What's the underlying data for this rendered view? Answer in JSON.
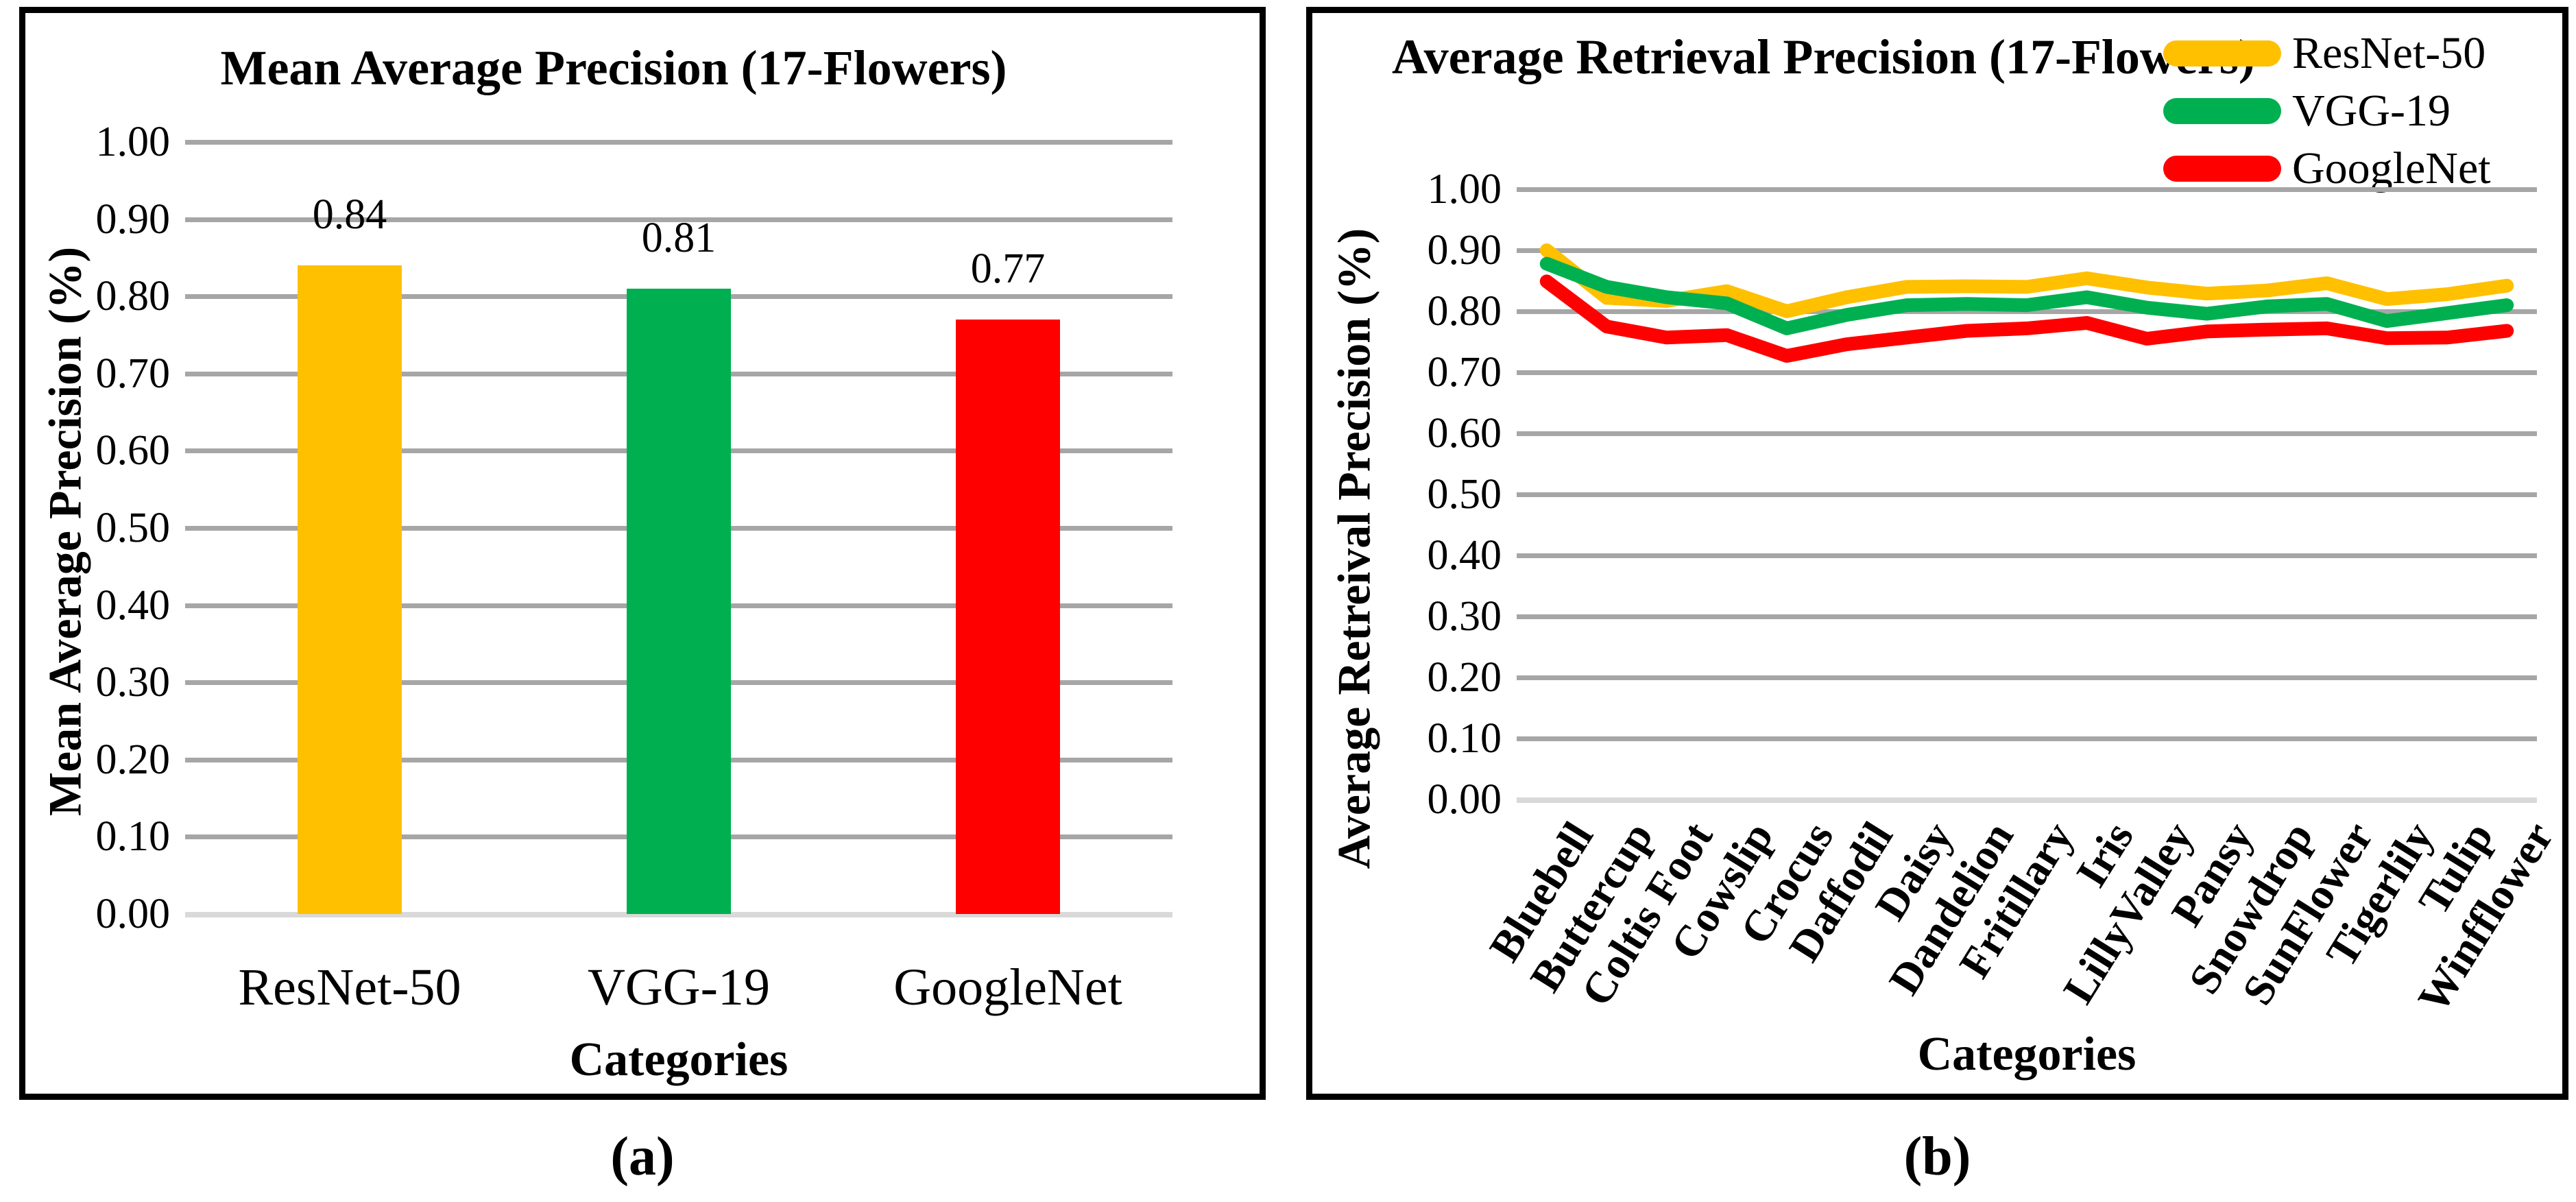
{
  "figure": {
    "captions": {
      "a": "(a)",
      "b": "(b)"
    }
  },
  "colors": {
    "background": "#FFFFFF",
    "panel_border": "#000000",
    "gridline": "#A6A6A6",
    "baseline": "#D9D9D9",
    "text": "#000000"
  },
  "chart_data": [
    {
      "type": "bar",
      "panel": "a",
      "title": "Mean Average Precision (17-Flowers)",
      "xlabel": "Categories",
      "ylabel": "Mean Average Precision (%)",
      "categories": [
        "ResNet-50",
        "VGG-19",
        "GoogleNet"
      ],
      "values": [
        0.84,
        0.81,
        0.77
      ],
      "value_labels": [
        "0.84",
        "0.81",
        "0.77"
      ],
      "bar_colors": [
        "#FFC000",
        "#00B050",
        "#FF0000"
      ],
      "ylim": [
        0.0,
        1.0
      ],
      "ytick_values": [
        1.0,
        0.9,
        0.8,
        0.7,
        0.6,
        0.5,
        0.4,
        0.3,
        0.2,
        0.1,
        0.0
      ],
      "ytick_labels": [
        "1.00",
        "0.90",
        "0.80",
        "0.70",
        "0.60",
        "0.50",
        "0.40",
        "0.30",
        "0.20",
        "0.10",
        "0.00"
      ],
      "grid": true,
      "legend_position": "none"
    },
    {
      "type": "line",
      "panel": "b",
      "title": "Average Retrieval Precision (17-Flowers)",
      "xlabel": "Categories",
      "ylabel": "Average Retreival Precision (%)",
      "categories": [
        "Bluebell",
        "Buttercup",
        "Coltis Foot",
        "Cowslip",
        "Crocus",
        "Daffodil",
        "Daisy",
        "Dandelion",
        "Fritillary",
        "Iris",
        "LillyValley",
        "Pansy",
        "Snowdrop",
        "SunFlower",
        "Tigerlily",
        "Tulip",
        "Winfflower"
      ],
      "series": [
        {
          "name": "ResNet-50",
          "color": "#FFC000",
          "values": [
            0.9,
            0.822,
            0.817,
            0.833,
            0.8,
            0.823,
            0.84,
            0.841,
            0.84,
            0.854,
            0.839,
            0.829,
            0.834,
            0.846,
            0.82,
            0.828,
            0.842
          ]
        },
        {
          "name": "VGG-19",
          "color": "#00B050",
          "values": [
            0.878,
            0.84,
            0.823,
            0.813,
            0.772,
            0.794,
            0.81,
            0.812,
            0.81,
            0.823,
            0.806,
            0.796,
            0.808,
            0.812,
            0.784,
            0.797,
            0.81
          ]
        },
        {
          "name": "GoogleNet",
          "color": "#FF0000",
          "values": [
            0.849,
            0.775,
            0.757,
            0.761,
            0.727,
            0.746,
            0.757,
            0.768,
            0.772,
            0.781,
            0.755,
            0.767,
            0.77,
            0.772,
            0.756,
            0.757,
            0.768
          ]
        }
      ],
      "ylim": [
        0.0,
        1.0
      ],
      "ytick_values": [
        1.0,
        0.9,
        0.8,
        0.7,
        0.6,
        0.5,
        0.4,
        0.3,
        0.2,
        0.1,
        0.0
      ],
      "ytick_labels": [
        "1.00",
        "0.90",
        "0.80",
        "0.70",
        "0.60",
        "0.50",
        "0.40",
        "0.30",
        "0.20",
        "0.10",
        "0.00"
      ],
      "grid": true,
      "legend_position": "top-right",
      "line_width": 20
    }
  ]
}
